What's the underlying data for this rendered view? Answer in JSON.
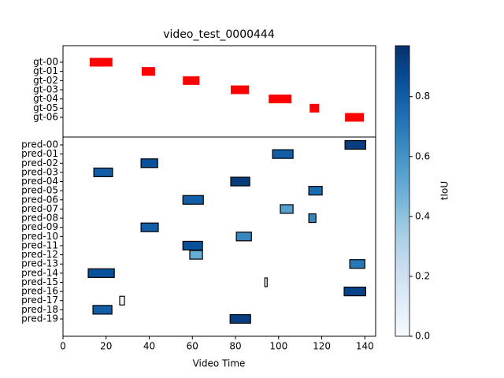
{
  "chart_data": {
    "type": "timeline",
    "title": "video_test_0000444",
    "xlabel": "Video Time",
    "xlim": [
      0,
      145
    ],
    "xticks": [
      0,
      20,
      40,
      60,
      80,
      100,
      120,
      140
    ],
    "gt": {
      "color": "#ff0000",
      "categories": [
        "gt-00",
        "gt-01",
        "gt-02",
        "gt-03",
        "gt-04",
        "gt-05",
        "gt-06"
      ],
      "starts": [
        12.4,
        36.5,
        55.6,
        77.8,
        95.4,
        114.4,
        130.8
      ],
      "ends": [
        22.9,
        42.7,
        63.3,
        86.3,
        106,
        118.8,
        139.6
      ]
    },
    "pred": {
      "categories": [
        "pred-00",
        "pred-01",
        "pred-02",
        "pred-03",
        "pred-04",
        "pred-05",
        "pred-06",
        "pred-07",
        "pred-08",
        "pred-09",
        "pred-10",
        "pred-11",
        "pred-12",
        "pred-13",
        "pred-14",
        "pred-15",
        "pred-16",
        "pred-17",
        "pred-18",
        "pred-19"
      ],
      "starts": [
        130.8,
        97.2,
        36.2,
        14.3,
        77.8,
        114,
        55.6,
        100.8,
        114,
        36.2,
        80.4,
        55.6,
        58.8,
        133,
        11.7,
        93.6,
        130.4,
        26.3,
        13.9,
        77.5
      ],
      "ends": [
        140.4,
        106.7,
        43.9,
        23,
        86.6,
        120.2,
        65.1,
        106.7,
        117.3,
        44.2,
        87.4,
        64.7,
        64.7,
        140,
        23.8,
        94.7,
        140.4,
        28.5,
        22.7,
        87
      ],
      "tiou": [
        0.92,
        0.8,
        0.85,
        0.8,
        0.93,
        0.75,
        0.8,
        0.55,
        0.65,
        0.8,
        0.65,
        0.85,
        0.5,
        0.7,
        0.85,
        0.0,
        0.9,
        0.0,
        0.8,
        0.92
      ]
    },
    "colorbar": {
      "label": "tIoU",
      "lim": [
        0,
        0.97
      ],
      "ticks": [
        {
          "value": 0,
          "label": "0.0"
        },
        0.2,
        0.4,
        0.6,
        0.8
      ]
    }
  }
}
